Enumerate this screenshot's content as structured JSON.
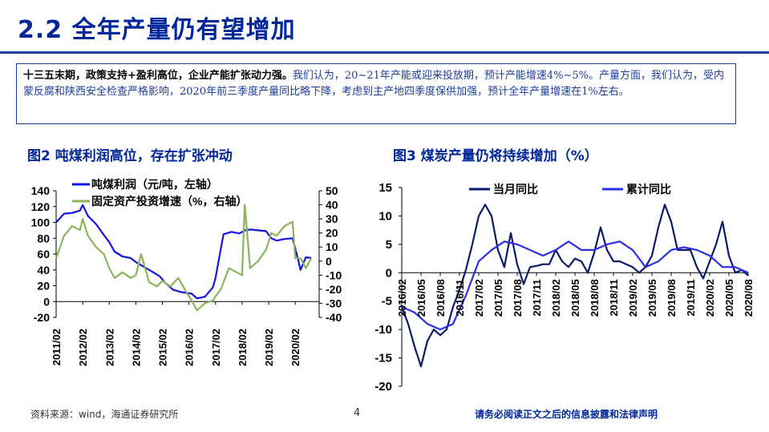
{
  "slide": {
    "title": "2.2 全年产量仍有望增加",
    "summary_bold": "十三五末期，政策支持+盈利高位，企业产能扩张动力强。",
    "summary_text": "我们认为，20~21年产能或迎来投放期，预计产能增速4%~5%。产量方面，我们认为，受内蒙反腐和陕西安全检查严格影响，2020年前三季度产量同比略下降，考虑到主产地四季度保供加强，预计全年产量增速在1%左右。",
    "source": "资料来源：wind，海通证券研究所",
    "page_number": "4",
    "disclaimer": "请务必阅读正文之后的信息披露和法律声明"
  },
  "figure2": {
    "title": "图2   吨煤利润高位，存在扩张冲动",
    "legend": [
      "吨煤利润（元/吨，左轴）",
      "固定资产投资增速（%，右轴）"
    ]
  },
  "figure3": {
    "title": "图3   煤炭产量仍将持续增加（%）",
    "legend": [
      "当月同比",
      "累计同比"
    ]
  },
  "chart_data": [
    {
      "type": "line",
      "title": "图2   吨煤利润高位，存在扩张冲动",
      "x_ticks": [
        "2011/02",
        "2012/02",
        "2013/02",
        "2014/02",
        "2015/02",
        "2016/02",
        "2017/02",
        "2018/02",
        "2019/02",
        "2020/02"
      ],
      "y_left_ticks": [
        "140",
        "120",
        "100",
        "80",
        "60",
        "40",
        "20",
        "0",
        "-20"
      ],
      "y_left_range": [
        -20,
        140
      ],
      "y_right_ticks": [
        "50",
        "40",
        "30",
        "20",
        "10",
        "0",
        "-10",
        "-20",
        "-30",
        "-40"
      ],
      "y_right_range": [
        -40,
        50
      ],
      "series": [
        {
          "name": "吨煤利润（元/吨，左轴）",
          "axis": "left",
          "color": "#1414e6",
          "x": [
            2011.0,
            2011.3,
            2011.6,
            2011.9,
            2012.0,
            2012.2,
            2012.5,
            2012.8,
            2013.0,
            2013.2,
            2013.5,
            2013.8,
            2014.0,
            2014.3,
            2014.6,
            2014.9,
            2015.1,
            2015.4,
            2015.7,
            2015.9,
            2016.1,
            2016.3,
            2016.6,
            2016.9,
            2017.0,
            2017.3,
            2017.6,
            2017.9,
            2018.1,
            2018.3,
            2018.6,
            2018.9,
            2019.1,
            2019.3,
            2019.6,
            2019.9,
            2020.1,
            2020.2,
            2020.4,
            2020.6
          ],
          "y": [
            100,
            111,
            112,
            115,
            122,
            108,
            98,
            84,
            75,
            63,
            57,
            55,
            50,
            44,
            38,
            32,
            24,
            15,
            12,
            11,
            10,
            4,
            6,
            18,
            30,
            85,
            88,
            86,
            90,
            91,
            90,
            89,
            80,
            77,
            79,
            80,
            54,
            40,
            56,
            55
          ]
        },
        {
          "name": "固定资产投资增速（%，右轴）",
          "axis": "right",
          "color": "#8db35a",
          "x": [
            2011.0,
            2011.3,
            2011.6,
            2011.9,
            2012.0,
            2012.2,
            2012.5,
            2012.8,
            2013.0,
            2013.2,
            2013.5,
            2013.8,
            2014.0,
            2014.2,
            2014.5,
            2014.8,
            2015.0,
            2015.3,
            2015.6,
            2015.9,
            2016.1,
            2016.3,
            2016.6,
            2016.9,
            2017.0,
            2017.2,
            2017.5,
            2017.8,
            2018.0,
            2018.1,
            2018.3,
            2018.6,
            2018.9,
            2019.1,
            2019.3,
            2019.6,
            2019.9,
            2020.0,
            2020.2,
            2020.4,
            2020.6
          ],
          "y": [
            2,
            18,
            25,
            22,
            30,
            18,
            10,
            5,
            -5,
            -12,
            -8,
            -12,
            -10,
            5,
            -15,
            -18,
            -14,
            -18,
            -12,
            -22,
            -28,
            -35,
            -30,
            -28,
            -25,
            -20,
            -5,
            -8,
            -10,
            40,
            -5,
            0,
            8,
            20,
            18,
            25,
            28,
            2,
            2,
            -5,
            2
          ]
        }
      ]
    },
    {
      "type": "line",
      "title": "图3   煤炭产量仍将持续增加（%）",
      "x_ticks": [
        "2016/02",
        "2016/05",
        "2016/08",
        "2016/11",
        "2017/02",
        "2017/05",
        "2017/08",
        "2017/11",
        "2018/02",
        "2018/05",
        "2018/08",
        "2018/11",
        "2019/02",
        "2019/05",
        "2019/08",
        "2019/11",
        "2020/02",
        "2020/05",
        "2020/08"
      ],
      "y_ticks": [
        "15",
        "10",
        "5",
        "0",
        "-5",
        "-10",
        "-15",
        "-20"
      ],
      "y_range": [
        -20,
        15
      ],
      "series": [
        {
          "name": "当月同比",
          "color": "#0a1a6e",
          "x": [
            0,
            1,
            2,
            3,
            4,
            5,
            6,
            7,
            8,
            9,
            10,
            11,
            12,
            13,
            14,
            15,
            16,
            17,
            18,
            19,
            20,
            21,
            22,
            23,
            24,
            25,
            26,
            27,
            28,
            29,
            30,
            31,
            32,
            33,
            34,
            35,
            36,
            37,
            38,
            39,
            40,
            41,
            42,
            43,
            44,
            45,
            46,
            47,
            48,
            49,
            50,
            51,
            52,
            53,
            54
          ],
          "y": [
            -6,
            -9,
            -13,
            -16.5,
            -12,
            -10,
            -11,
            -10,
            -6,
            -3,
            0.5,
            5,
            10,
            12,
            10,
            4,
            1,
            7,
            1.5,
            -2,
            1,
            1.2,
            1.5,
            1.5,
            4,
            2,
            1,
            2.5,
            2,
            0,
            3.5,
            8,
            4,
            2,
            2,
            1.5,
            1,
            0,
            1,
            3,
            8,
            12,
            9,
            4,
            4,
            4,
            1,
            -1,
            2,
            5,
            9,
            3,
            0,
            0.5,
            -0.5
          ]
        },
        {
          "name": "累计同比",
          "color": "#2a2ee8",
          "x": [
            0,
            2,
            4,
            6,
            8,
            10,
            12,
            14,
            16,
            18,
            20,
            22,
            24,
            26,
            28,
            30,
            32,
            34,
            36,
            38,
            40,
            42,
            44,
            46,
            48,
            50,
            52,
            54
          ],
          "y": [
            -6,
            -7,
            -9,
            -10,
            -9,
            -4,
            2,
            4,
            5.5,
            5,
            4,
            3,
            4,
            5.5,
            4,
            4,
            5,
            5.5,
            4,
            1,
            2,
            4,
            4.5,
            4,
            3,
            1,
            1,
            0
          ]
        }
      ]
    }
  ]
}
